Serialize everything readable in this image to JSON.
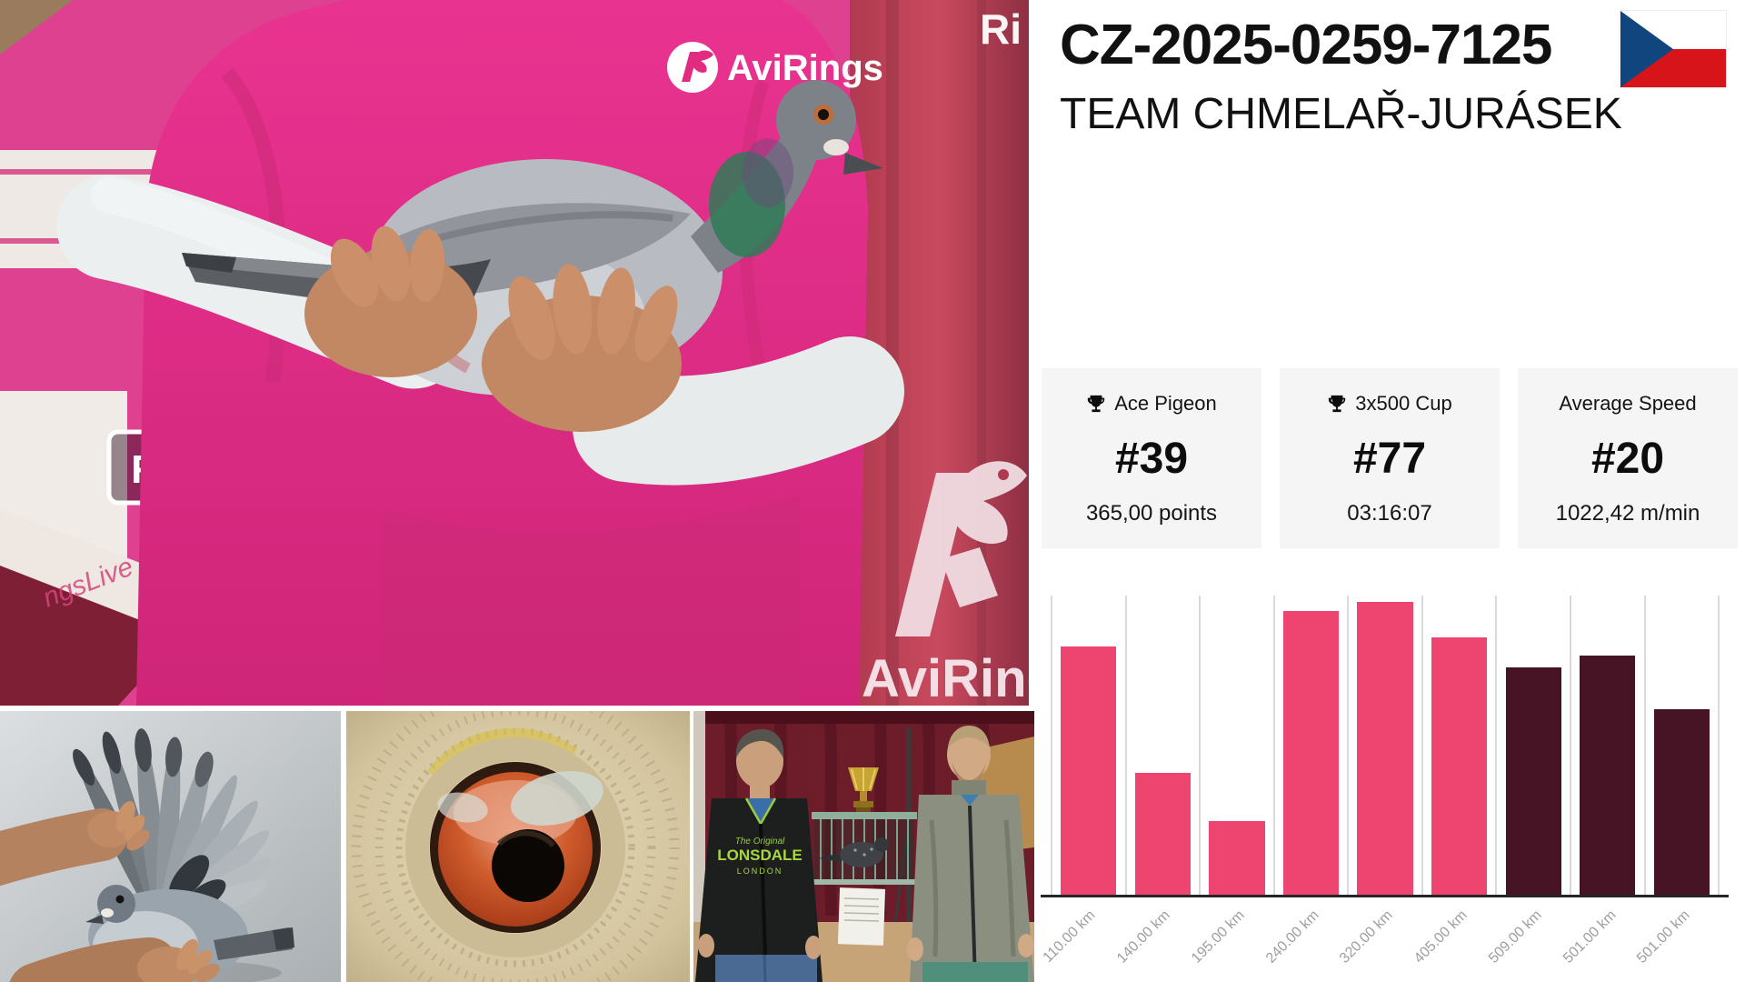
{
  "header": {
    "ring_number": "CZ-2025-0259-7125",
    "team": "TEAM CHMELAŘ-JURÁSEK",
    "flag_country": "Czech Republic"
  },
  "stats": [
    {
      "icon": "trophy-icon",
      "label": "Ace Pigeon",
      "rank": "#39",
      "detail": "365,00 points"
    },
    {
      "icon": "trophy-icon",
      "label": "3x500 Cup",
      "rank": "#77",
      "detail": "03:16:07"
    },
    {
      "icon": "",
      "label": "Average Speed",
      "rank": "#20",
      "detail": "1022,42 m/min"
    }
  ],
  "chart_data": {
    "type": "bar",
    "categories": [
      "110.00 km",
      "140.00 km",
      "195.00 km",
      "240.00 km",
      "320.00 km",
      "405.00 km",
      "509.00 km",
      "501.00 km",
      "501.00 km"
    ],
    "values_pct": [
      83,
      41,
      25,
      95,
      98,
      86,
      76,
      80,
      62
    ],
    "ylim": [
      0,
      100
    ],
    "bar_colors": [
      "pink",
      "pink",
      "pink",
      "pink",
      "pink",
      "pink",
      "dark",
      "dark",
      "dark"
    ],
    "colors": {
      "pink": "#ee4470",
      "dark": "#471425",
      "gridline": "#d9d9d9",
      "axis": "#262626",
      "label": "#9e9e9e"
    },
    "title": "",
    "xlabel": "",
    "ylabel": "",
    "grid": "vertical-only",
    "legend": "none"
  },
  "photos": {
    "main": {
      "description": "fancier in pink AviRings shirt holding grey racing pigeon",
      "shirt_logo_text": "AviRings",
      "banner_text": "AviRings",
      "banner_partial_text": "Ri",
      "wall_logo_text": "R",
      "wall_watermark_text": "ngsLive"
    },
    "wing": {
      "description": "hand presenting extended pigeon wing"
    },
    "eye": {
      "description": "close-up of pigeon eye"
    },
    "men": {
      "description": "two fanciers with trophy, show cage and pedigree sheet",
      "jacket_text_script": "The Original",
      "jacket_text_main": "LONSDALE",
      "jacket_text_sub": "LONDON"
    }
  },
  "colors": {
    "accent_pink": "#ee4470",
    "dark_maroon": "#471425",
    "card_bg": "#f5f5f5",
    "shirt_pink": "#e02b80",
    "banner_red": "#c04a5c",
    "flag_blue": "#11457E",
    "flag_red": "#D7141A"
  }
}
